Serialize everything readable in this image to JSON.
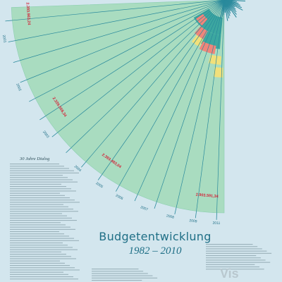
{
  "poster": {
    "title": "Budgetentwicklung",
    "subtitle": "1982 – 2010",
    "side_heading": "30 Jahre Dialog",
    "watermark": "Vis"
  },
  "colors": {
    "background": "#d3e6ee",
    "budget_fill": "#a9dcc0",
    "budget_stroke": "#8ccfb0",
    "spoke": "#2a8a9c",
    "teal_core": "#3ca7a0",
    "red_band": "#f0857a",
    "yellow_band": "#f1e07a",
    "year_label": "#1f6f86",
    "amount_label": "#d3263a"
  },
  "chart_data": {
    "type": "radial-bar",
    "title": "Budgetentwicklung",
    "subtitle": "1982 – 2010",
    "series": [
      {
        "name": "",
        "color": "#a9dcc0"
      }
    ],
    "year_labels": [
      "2011",
      "2009",
      "2008",
      "2007",
      "2006",
      "2005",
      "2004",
      "2003",
      "2002",
      "2001"
    ],
    "amount_labels": [
      "2.393.963,24",
      "2.339.558,34",
      "2.393.483,04",
      "2.903.591,34"
    ],
    "annotated": [
      {
        "year": "2002",
        "amount": "2.393.963,24"
      },
      {
        "year": "2004",
        "amount": "2.339.558,34"
      },
      {
        "year": "2007",
        "amount": "2.393.483,04"
      },
      {
        "year": "2010",
        "amount": "2.903.591,34"
      }
    ]
  }
}
